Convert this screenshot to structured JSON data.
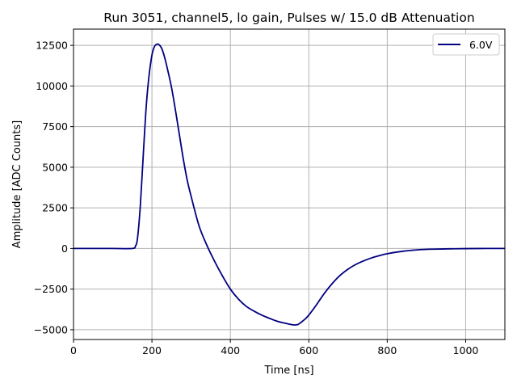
{
  "chart_data": {
    "type": "line",
    "title": "Run 3051, channel5, lo gain, Pulses w/ 15.0 dB Attenuation",
    "xlabel": "Time [ns]",
    "ylabel": "Amplitude [ADC Counts]",
    "xlim": [
      0,
      1100
    ],
    "ylim": [
      -5600,
      13500
    ],
    "xticks": [
      0,
      200,
      400,
      600,
      800,
      1000
    ],
    "yticks": [
      -5000,
      -2500,
      0,
      2500,
      5000,
      7500,
      10000,
      12500
    ],
    "grid": true,
    "legend": "top-right",
    "colors": {
      "series": "#000080",
      "grid": "#b0b0b0"
    },
    "series": [
      {
        "name": "6.0V",
        "x": [
          0,
          50,
          100,
          150,
          158,
          163,
          170,
          178,
          185,
          192,
          200,
          207,
          214,
          220,
          226,
          233,
          240,
          250,
          260,
          270,
          280,
          290,
          300,
          320,
          340,
          360,
          380,
          400,
          420,
          440,
          460,
          480,
          500,
          520,
          540,
          560,
          572,
          580,
          590,
          600,
          620,
          640,
          660,
          680,
          700,
          720,
          740,
          760,
          780,
          800,
          840,
          880,
          920,
          960,
          1000,
          1050,
          1100
        ],
        "y": [
          0,
          0,
          0,
          0,
          150,
          600,
          2500,
          5800,
          8600,
          10500,
          11900,
          12450,
          12580,
          12500,
          12250,
          11700,
          11000,
          9900,
          8500,
          7000,
          5500,
          4200,
          3200,
          1400,
          200,
          -800,
          -1700,
          -2500,
          -3100,
          -3550,
          -3850,
          -4100,
          -4300,
          -4480,
          -4600,
          -4700,
          -4680,
          -4550,
          -4350,
          -4100,
          -3450,
          -2750,
          -2150,
          -1650,
          -1270,
          -980,
          -760,
          -580,
          -440,
          -320,
          -170,
          -80,
          -40,
          -20,
          -8,
          0,
          0
        ]
      }
    ]
  }
}
